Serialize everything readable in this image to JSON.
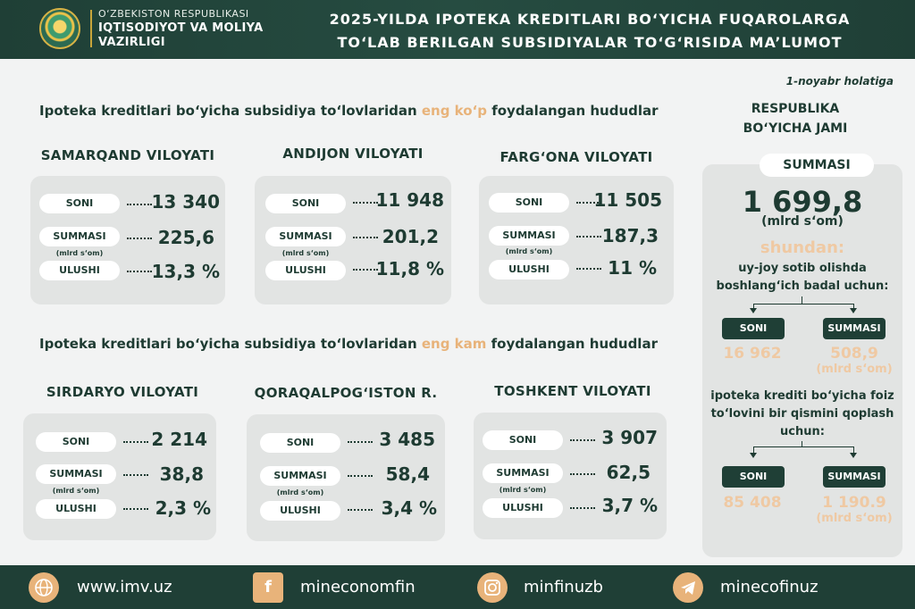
{
  "header": {
    "ministry_line1": "O‘ZBEKISTON RESPUBLIKASI",
    "ministry_line2": "IQTISODIYOT VA MOLIYA",
    "ministry_line3": "VAZIRLIGI",
    "title_line1": "2025-YILDA IPOTEKA KREDITLARI BO‘YICHA FUQAROLARGA",
    "title_line2": "TO‘LAB BERILGAN SUBSIDIYALAR TO‘G‘RISIDA MA’LUMOT"
  },
  "date": "1-noyabr holatiga",
  "labels": {
    "soni": "SONI",
    "summasi": "SUMMASI",
    "ulushi": "ULUSHI",
    "unit": "(mlrd s‘om)"
  },
  "top_section": {
    "prefix": "Ipoteka kreditlari bo‘yicha subsidiya to‘lovlaridan ",
    "highlight": "eng ko‘p",
    "suffix": " foydalangan hududlar",
    "regions": [
      {
        "name": "SAMARQAND VILOYATI",
        "soni": "13 340",
        "summasi": "225,6",
        "ulushi": "13,3 %"
      },
      {
        "name": "ANDIJON VILOYATI",
        "soni": "11 948",
        "summasi": "201,2",
        "ulushi": "11,8 %"
      },
      {
        "name": "FARG‘ONA VILOYATI",
        "soni": "11 505",
        "summasi": "187,3",
        "ulushi": "11 %"
      }
    ]
  },
  "bottom_section": {
    "prefix": "Ipoteka kreditlari bo‘yicha subsidiya to‘lovlaridan ",
    "highlight": "eng kam",
    "suffix": " foydalangan hududlar",
    "regions": [
      {
        "name": "SIRDARYO VILOYATI",
        "soni": "2 214",
        "summasi": "38,8",
        "ulushi": "2,3 %"
      },
      {
        "name": "QORAQALPOG‘ISTON R.",
        "soni": "3 485",
        "summasi": "58,4",
        "ulushi": "3,4 %"
      },
      {
        "name": "TOSHKENT VILOYATI",
        "soni": "3 907",
        "summasi": "62,5",
        "ulushi": "3,7 %"
      }
    ]
  },
  "right_panel": {
    "title_line1": "RESPUBLIKA",
    "title_line2": "BO‘YICHA JAMI",
    "summasi_label": "SUMMASI",
    "total": "1 699,8",
    "total_unit": "(mlrd s‘om)",
    "shundan": "shundan:",
    "group1_text_line1": "uy-joy sotib olishda",
    "group1_text_line2": "boshlang‘ich badal uchun:",
    "group1_soni": "16 962",
    "group1_summasi": "508,9",
    "group2_text_line1": "ipoteka krediti bo‘yicha foiz",
    "group2_text_line2": "to‘lovini bir qismini qoplash",
    "group2_text_line3": "uchun:",
    "group2_soni": "85 408",
    "group2_summasi": "1 190.9"
  },
  "footer": {
    "website": "www.imv.uz",
    "facebook": "mineconomfin",
    "instagram": "minfinuzb",
    "telegram": "minecofinuz"
  },
  "icons": {
    "web": "globe-icon",
    "facebook": "facebook-icon",
    "instagram": "instagram-icon",
    "telegram": "telegram-icon"
  },
  "colors": {
    "dark_green": "#1f3f36",
    "accent_peach": "#e8b37a",
    "card_gray": "#e2e4e3"
  }
}
